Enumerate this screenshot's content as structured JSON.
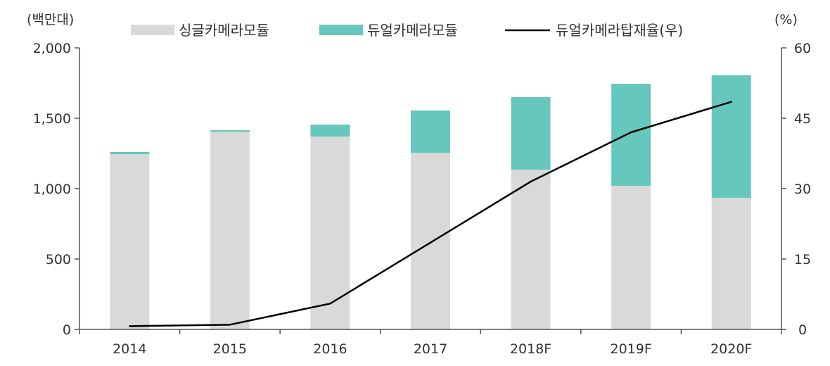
{
  "chart_data": {
    "type": "bar+line",
    "title": "",
    "categories": [
      "2014",
      "2015",
      "2016",
      "2017",
      "2018F",
      "2019F",
      "2020F"
    ],
    "left_axis": {
      "unit_label": "(백만대)",
      "range": [
        0,
        2000
      ],
      "ticks": [
        0,
        500,
        1000,
        1500,
        2000
      ],
      "tick_labels": [
        "0",
        "500",
        "1,000",
        "1,500",
        "2,000"
      ]
    },
    "right_axis": {
      "unit_label": "(%)",
      "range": [
        0,
        60
      ],
      "ticks": [
        0,
        15,
        30,
        45,
        60
      ],
      "tick_labels": [
        "0",
        "15",
        "30",
        "45",
        "60"
      ]
    },
    "series": [
      {
        "name": "싱글카메라모듈",
        "kind": "bar",
        "axis": "left",
        "color": "#d9d9d9",
        "values": [
          1245,
          1405,
          1370,
          1255,
          1135,
          1020,
          935
        ]
      },
      {
        "name": "듀얼카메라모듈",
        "kind": "bar",
        "axis": "left",
        "color": "#66c8bc",
        "values": [
          15,
          10,
          85,
          300,
          515,
          725,
          870
        ]
      },
      {
        "name": "듀얼카메라탑재율(우)",
        "kind": "line",
        "axis": "right",
        "color": "#000000",
        "values": [
          0.7,
          1.0,
          5.5,
          18.5,
          31.5,
          42.0,
          48.5
        ]
      }
    ],
    "legend_position": "top",
    "grid": false
  }
}
